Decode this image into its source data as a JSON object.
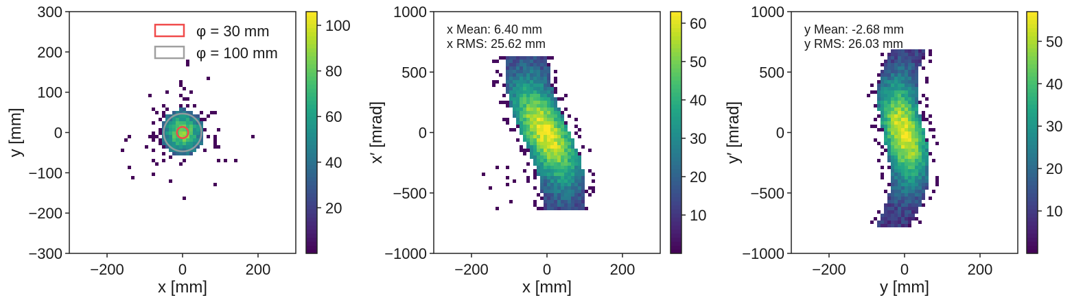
{
  "chart_data": [
    {
      "type": "heatmap",
      "xlabel": "x [mm]",
      "ylabel": "y [mm]",
      "xlim": [
        -300,
        300
      ],
      "ylim": [
        -300,
        300
      ],
      "xticks": [
        {
          "value": -200,
          "label": "−200"
        },
        {
          "value": 0,
          "label": "0"
        },
        {
          "value": 200,
          "label": "200"
        }
      ],
      "yticks": [
        {
          "value": -300,
          "label": "−300"
        },
        {
          "value": -200,
          "label": "−200"
        },
        {
          "value": -100,
          "label": "−100"
        },
        {
          "value": 0,
          "label": "0"
        },
        {
          "value": 100,
          "label": "100"
        },
        {
          "value": 200,
          "label": "200"
        },
        {
          "value": 300,
          "label": "300"
        }
      ],
      "colorbar": {
        "min": 0,
        "max": 106,
        "ticks": [
          {
            "value": 20,
            "label": "20"
          },
          {
            "value": 40,
            "label": "40"
          },
          {
            "value": 60,
            "label": "60"
          },
          {
            "value": 80,
            "label": "80"
          },
          {
            "value": 100,
            "label": "100"
          }
        ]
      },
      "legend": {
        "placement": "top-right",
        "items": [
          {
            "label": "φ = 30 mm",
            "color": "#f04a4a",
            "diameter_mm": 30
          },
          {
            "label": "φ = 100 mm",
            "color": "#a0a0a0",
            "diameter_mm": 100
          }
        ]
      },
      "distribution": {
        "shape": "round core with sparse halo",
        "center": [
          0,
          0
        ],
        "core_radius_mm": 55,
        "peak_count": 106
      },
      "annotations": []
    },
    {
      "type": "heatmap",
      "xlabel": "x [mm]",
      "ylabel": "x′ [mrad]",
      "xlim": [
        -300,
        300
      ],
      "ylim": [
        -1000,
        1000
      ],
      "xticks": [
        {
          "value": -200,
          "label": "−200"
        },
        {
          "value": 0,
          "label": "0"
        },
        {
          "value": 200,
          "label": "200"
        }
      ],
      "yticks": [
        {
          "value": -1000,
          "label": "−1000"
        },
        {
          "value": -500,
          "label": "−500"
        },
        {
          "value": 0,
          "label": "0"
        },
        {
          "value": 500,
          "label": "500"
        },
        {
          "value": 1000,
          "label": "1000"
        }
      ],
      "colorbar": {
        "min": 0,
        "max": 63,
        "ticks": [
          {
            "value": 10,
            "label": "10"
          },
          {
            "value": 20,
            "label": "20"
          },
          {
            "value": 30,
            "label": "30"
          },
          {
            "value": 40,
            "label": "40"
          },
          {
            "value": 50,
            "label": "50"
          },
          {
            "value": 60,
            "label": "60"
          }
        ]
      },
      "distribution": {
        "shape": "S-curve",
        "peak_count": 63
      },
      "annotations": [
        "x Mean: 6.40 mm",
        "x RMS: 25.62 mm"
      ]
    },
    {
      "type": "heatmap",
      "xlabel": "y [mm]",
      "ylabel": "y′ [mrad]",
      "xlim": [
        -300,
        300
      ],
      "ylim": [
        -1000,
        1000
      ],
      "xticks": [
        {
          "value": -200,
          "label": "−200"
        },
        {
          "value": 0,
          "label": "0"
        },
        {
          "value": 200,
          "label": "200"
        }
      ],
      "yticks": [
        {
          "value": -1000,
          "label": "−1000"
        },
        {
          "value": -500,
          "label": "−500"
        },
        {
          "value": 0,
          "label": "0"
        },
        {
          "value": 500,
          "label": "500"
        },
        {
          "value": 1000,
          "label": "1000"
        }
      ],
      "colorbar": {
        "min": 0,
        "max": 57,
        "ticks": [
          {
            "value": 10,
            "label": "10"
          },
          {
            "value": 20,
            "label": "20"
          },
          {
            "value": 30,
            "label": "30"
          },
          {
            "value": 40,
            "label": "40"
          },
          {
            "value": 50,
            "label": "50"
          }
        ]
      },
      "distribution": {
        "shape": "S-curve",
        "peak_count": 57
      },
      "annotations": [
        "y Mean: -2.68 mm",
        "y RMS: 26.03 mm"
      ]
    }
  ]
}
